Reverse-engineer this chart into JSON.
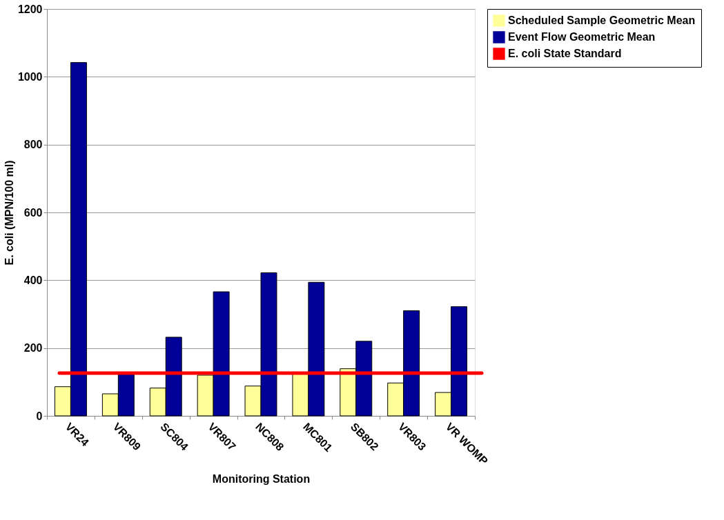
{
  "chart_data": {
    "type": "bar",
    "categories": [
      "VR24",
      "VR809",
      "SC804",
      "VR807",
      "NC808",
      "MC801",
      "SB802",
      "VR803",
      "VR WOMP"
    ],
    "series": [
      {
        "name": "Scheduled Sample Geometric Mean",
        "color": "#ffff99",
        "values": [
          86,
          65,
          82,
          120,
          88,
          123,
          139,
          97,
          69
        ]
      },
      {
        "name": "Event Flow Geometric Mean",
        "color": "#000099",
        "values": [
          1042,
          125,
          232,
          366,
          422,
          394,
          220,
          310,
          322
        ]
      }
    ],
    "ref_lines": [
      {
        "axis": "y",
        "value": 126,
        "label": "E. coli State Standard",
        "color": "#ff0000"
      }
    ],
    "xlabel": "Monitoring Station",
    "ylabel": "E. coli (MPN/100 ml)",
    "ylim": [
      0,
      1200
    ],
    "yticks": [
      0,
      200,
      400,
      600,
      800,
      1000,
      1200
    ],
    "grid": "y",
    "legend": "right"
  }
}
